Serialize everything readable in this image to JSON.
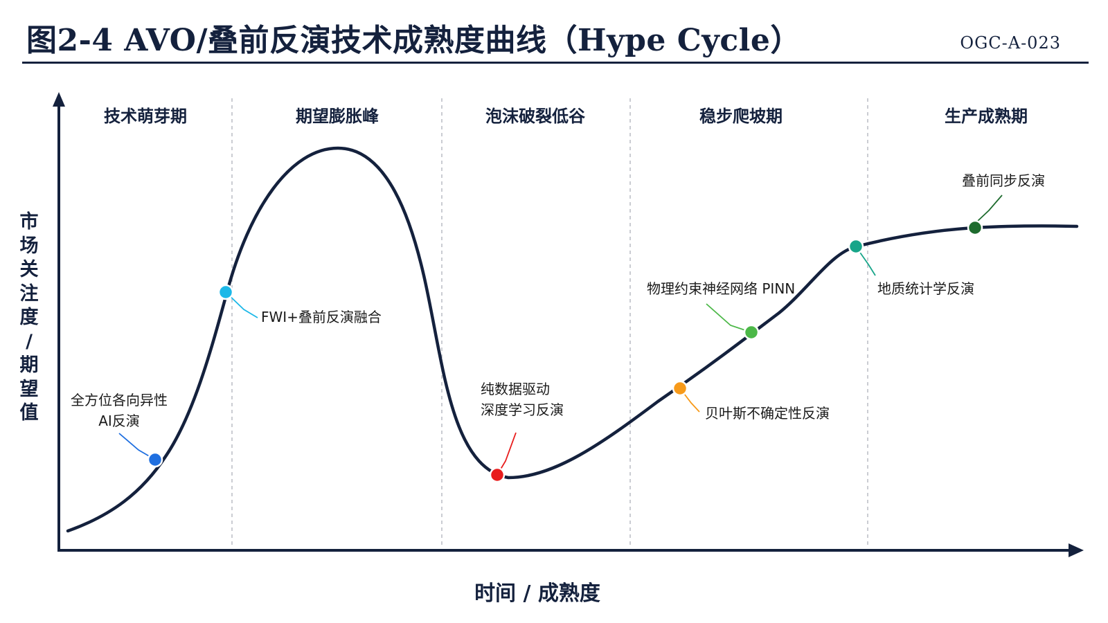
{
  "header": {
    "title": "图2-4 AVO/叠前反演技术成熟度曲线（Hype Cycle）",
    "code": "OGC-A-023"
  },
  "axes": {
    "y_label": [
      "市",
      "场",
      "关",
      "注",
      "度",
      "/",
      "期",
      "望",
      "值"
    ],
    "x_label": "时间 / 成熟度"
  },
  "phases": [
    {
      "name": "技术萌芽期"
    },
    {
      "name": "期望膨胀峰"
    },
    {
      "name": "泡沫破裂低谷"
    },
    {
      "name": "稳步爬坡期"
    },
    {
      "name": "生产成熟期"
    }
  ],
  "technologies": [
    {
      "lines": [
        "全方位各向异性",
        "AI反演"
      ],
      "color": "#1f6fe0"
    },
    {
      "lines": [
        "FWI+叠前反演融合"
      ],
      "color": "#1cb8e8"
    },
    {
      "lines": [
        "纯数据驱动",
        "深度学习反演"
      ],
      "color": "#e81c1c"
    },
    {
      "lines": [
        "贝叶斯不确定性反演"
      ],
      "color": "#f79a1a"
    },
    {
      "lines": [
        "物理约束神经网络 PINN"
      ],
      "color": "#4cb848"
    },
    {
      "lines": [
        "地质统计学反演"
      ],
      "color": "#17a589"
    },
    {
      "lines": [
        "叠前同步反演"
      ],
      "color": "#1e6b2e"
    }
  ]
}
